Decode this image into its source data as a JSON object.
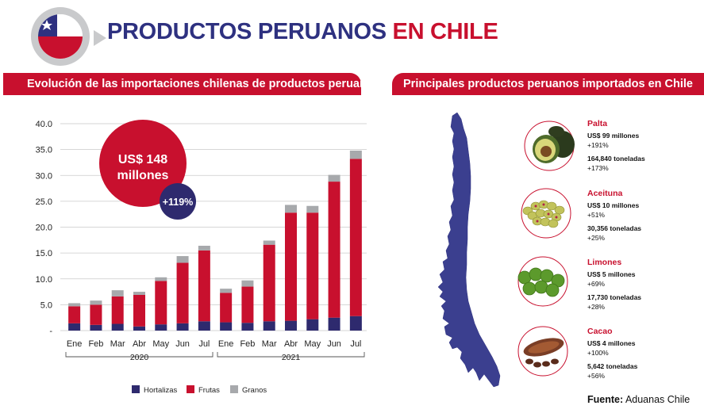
{
  "header": {
    "title_main": "PRODUCTOS PERUANOS",
    "title_accent": "EN CHILE",
    "left_banner": "Evolución de las importaciones chilenas de productos peruanos",
    "right_banner": "Principales productos peruanos importados en Chile"
  },
  "highlight": {
    "total_line1": "US$ 148",
    "total_line2": "millones",
    "growth": "+119%"
  },
  "colors": {
    "hortalizas": "#2e2a6e",
    "frutas": "#c8102e",
    "granos": "#a7a9ac",
    "title_blue": "#2e3180",
    "accent_red": "#c8102e",
    "map_blue": "#3b3f8f"
  },
  "chart_data": {
    "type": "bar",
    "stacked": true,
    "categories": [
      "Ene",
      "Feb",
      "Mar",
      "Abr",
      "May",
      "Jun",
      "Jul",
      "Ene",
      "Feb",
      "Mar",
      "Abr",
      "May",
      "Jun",
      "Jul"
    ],
    "groups": [
      {
        "label": "2020",
        "categories": [
          "Ene",
          "Feb",
          "Mar",
          "Abr",
          "May",
          "Jun",
          "Jul"
        ]
      },
      {
        "label": "2021",
        "categories": [
          "Ene",
          "Feb",
          "Mar",
          "Abr",
          "May",
          "Jun",
          "Jul"
        ]
      }
    ],
    "series": [
      {
        "name": "Hortalizas",
        "values": [
          1.4,
          1.1,
          1.3,
          0.8,
          1.2,
          1.4,
          1.8,
          1.6,
          1.5,
          1.8,
          1.9,
          2.2,
          2.5,
          2.8
        ]
      },
      {
        "name": "Frutas",
        "values": [
          3.3,
          3.9,
          5.3,
          6.1,
          8.4,
          11.7,
          13.7,
          5.7,
          7.0,
          14.8,
          20.9,
          20.6,
          26.3,
          30.4
        ]
      },
      {
        "name": "Granos",
        "values": [
          0.6,
          0.8,
          1.2,
          0.6,
          0.7,
          1.3,
          0.9,
          0.8,
          1.2,
          0.8,
          1.5,
          1.3,
          1.3,
          1.6
        ]
      }
    ],
    "ylim": [
      0,
      40
    ],
    "yticks": [
      "40.0",
      "35.0",
      "30.0",
      "25.0",
      "20.0",
      "15.0",
      "10.0",
      "5.0",
      "-"
    ],
    "grid": true,
    "legend_position": "bottom"
  },
  "products": [
    {
      "name": "Palta",
      "value": "US$ 99 millones",
      "value_growth": "+191%",
      "volume": "164,840 toneladas",
      "volume_growth": "+173%",
      "icon": "avocado-icon"
    },
    {
      "name": "Aceituna",
      "value": "US$ 10 millones",
      "value_growth": "+51%",
      "volume": "30,356 toneladas",
      "volume_growth": "+25%",
      "icon": "olives-icon"
    },
    {
      "name": "Limones",
      "value": "US$ 5 millones",
      "value_growth": "+69%",
      "volume": "17,730 toneladas",
      "volume_growth": "+28%",
      "icon": "limes-icon"
    },
    {
      "name": "Cacao",
      "value": "US$ 4 millones",
      "value_growth": "+100%",
      "volume": "5,642 toneladas",
      "volume_growth": "+56%",
      "icon": "cacao-icon"
    }
  ],
  "source": {
    "label": "Fuente:",
    "name": "Aduanas Chile"
  }
}
